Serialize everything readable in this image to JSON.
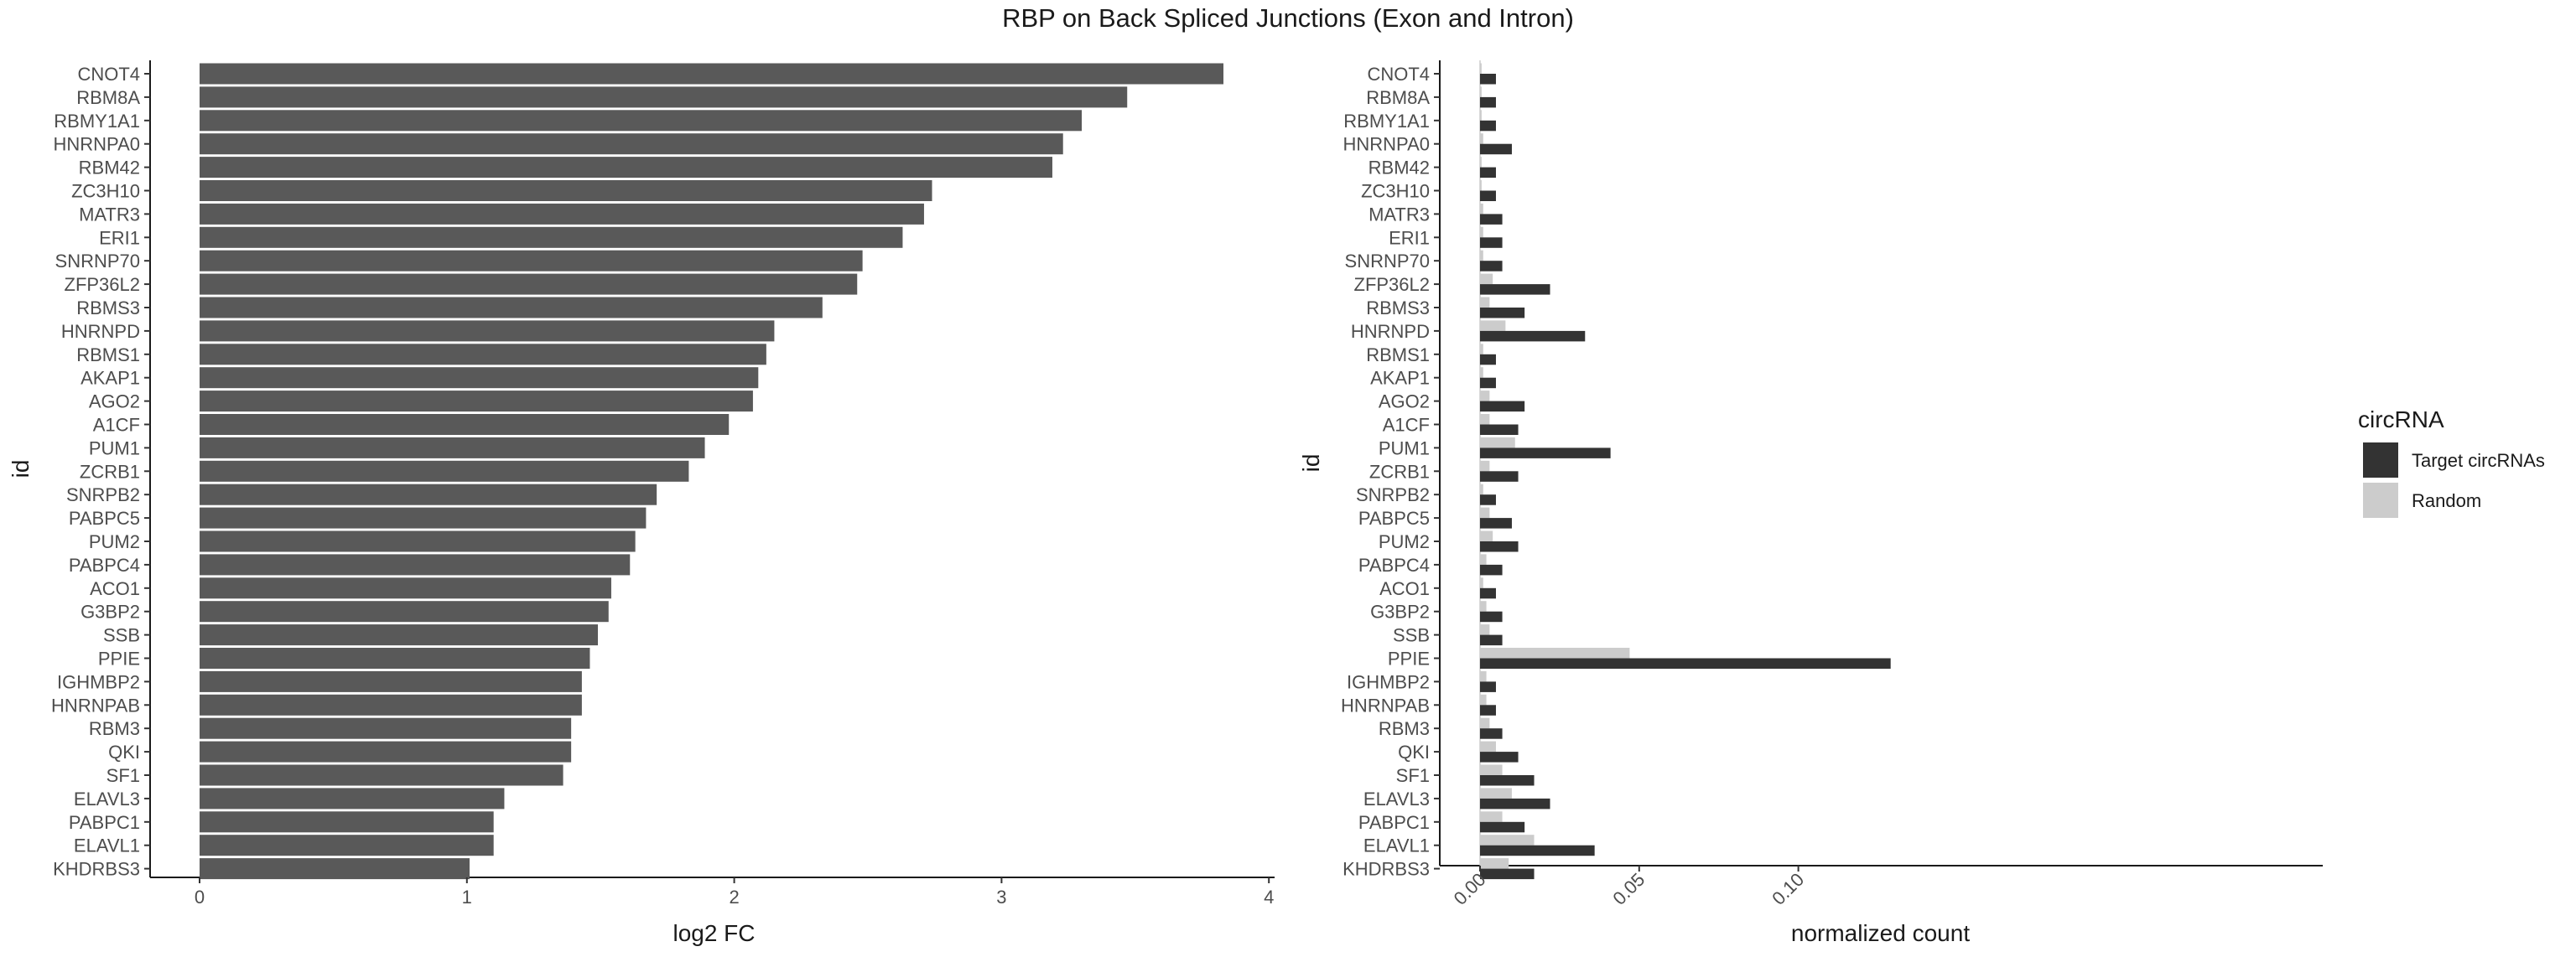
{
  "title": "RBP on Back Spliced Junctions (Exon and Intron)",
  "colors": {
    "fc_bar": "#595959",
    "target": "#333333",
    "random": "#cccccc"
  },
  "chart_data": [
    {
      "type": "bar",
      "orientation": "horizontal",
      "xlabel": "log2 FC",
      "ylabel": "id",
      "xlim": [
        -0.18,
        4.0
      ],
      "xticks": [
        "0",
        "1",
        "2",
        "3",
        "4"
      ],
      "categories": [
        "CNOT4",
        "RBM8A",
        "RBMY1A1",
        "HNRNPA0",
        "RBM42",
        "ZC3H10",
        "MATR3",
        "ERI1",
        "SNRNP70",
        "ZFP36L2",
        "RBMS3",
        "HNRNPD",
        "RBMS1",
        "AKAP1",
        "AGO2",
        "A1CF",
        "PUM1",
        "ZCRB1",
        "SNRPB2",
        "PABPC5",
        "PUM2",
        "PABPC4",
        "ACO1",
        "G3BP2",
        "SSB",
        "PPIE",
        "IGHMBP2",
        "HNRNPAB",
        "RBM3",
        "QKI",
        "SF1",
        "ELAVL3",
        "PABPC1",
        "ELAVL1",
        "KHDRBS3"
      ],
      "values": [
        3.83,
        3.47,
        3.3,
        3.23,
        3.19,
        2.74,
        2.71,
        2.63,
        2.48,
        2.46,
        2.33,
        2.15,
        2.12,
        2.09,
        2.07,
        1.98,
        1.89,
        1.83,
        1.71,
        1.67,
        1.63,
        1.61,
        1.54,
        1.53,
        1.49,
        1.46,
        1.43,
        1.43,
        1.39,
        1.39,
        1.36,
        1.14,
        1.1,
        1.1,
        1.01
      ]
    },
    {
      "type": "bar",
      "orientation": "horizontal",
      "grouped": true,
      "xlabel": "normalized count",
      "ylabel": "id",
      "xlim": [
        -0.007,
        0.14
      ],
      "xticks": [
        "0.00",
        "0.05",
        "0.10"
      ],
      "categories": [
        "CNOT4",
        "RBM8A",
        "RBMY1A1",
        "HNRNPA0",
        "RBM42",
        "ZC3H10",
        "MATR3",
        "ERI1",
        "SNRNP70",
        "ZFP36L2",
        "RBMS3",
        "HNRNPD",
        "RBMS1",
        "AKAP1",
        "AGO2",
        "A1CF",
        "PUM1",
        "ZCRB1",
        "SNRPB2",
        "PABPC5",
        "PUM2",
        "PABPC4",
        "ACO1",
        "G3BP2",
        "SSB",
        "PPIE",
        "IGHMBP2",
        "HNRNPAB",
        "RBM3",
        "QKI",
        "SF1",
        "ELAVL3",
        "PABPC1",
        "ELAVL1",
        "KHDRBS3"
      ],
      "legend": {
        "title": "circRNA",
        "placement": "right"
      },
      "series": [
        {
          "name": "Target circRNAs",
          "values": [
            0.005,
            0.005,
            0.005,
            0.01,
            0.005,
            0.005,
            0.007,
            0.007,
            0.007,
            0.022,
            0.014,
            0.033,
            0.005,
            0.005,
            0.014,
            0.012,
            0.041,
            0.012,
            0.005,
            0.01,
            0.012,
            0.007,
            0.005,
            0.007,
            0.007,
            0.129,
            0.005,
            0.005,
            0.007,
            0.012,
            0.017,
            0.022,
            0.014,
            0.036,
            0.017
          ]
        },
        {
          "name": "Random",
          "values": [
            0.0005,
            0.0005,
            0.0005,
            0.001,
            0.0005,
            0.0005,
            0.001,
            0.001,
            0.001,
            0.004,
            0.003,
            0.008,
            0.001,
            0.001,
            0.003,
            0.003,
            0.011,
            0.003,
            0.001,
            0.003,
            0.004,
            0.002,
            0.001,
            0.002,
            0.003,
            0.047,
            0.002,
            0.002,
            0.003,
            0.005,
            0.007,
            0.01,
            0.007,
            0.017,
            0.009
          ]
        }
      ]
    }
  ]
}
